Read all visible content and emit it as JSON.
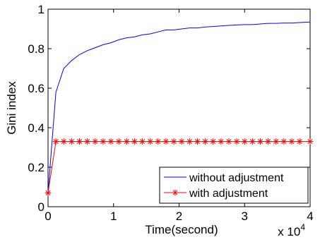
{
  "chart_data": {
    "type": "line",
    "xlabel": "Time(second)",
    "ylabel": "Gini index",
    "x_multiplier": "x 10",
    "x_multiplier_exp": "4",
    "xlim": [
      0,
      40000
    ],
    "ylim": [
      0,
      1
    ],
    "xticks": [
      0,
      10000,
      20000,
      30000,
      40000
    ],
    "xtick_labels": [
      "0",
      "1",
      "2",
      "3",
      "4"
    ],
    "yticks": [
      0,
      0.2,
      0.4,
      0.6,
      0.8,
      1
    ],
    "ytick_labels": [
      "0",
      "0.2",
      "0.4",
      "0.6",
      "0.8",
      "1"
    ],
    "grid": false,
    "legend_position": "bottom-right",
    "series": [
      {
        "name": "without adjustment",
        "color": "#0000ff",
        "marker": "none",
        "x": [
          0,
          1200,
          2400,
          3600,
          4800,
          6000,
          7200,
          8400,
          9600,
          10800,
          12000,
          13200,
          14400,
          15600,
          16800,
          18000,
          19200,
          20400,
          21600,
          22800,
          24000,
          25200,
          26400,
          27600,
          28800,
          30000,
          31200,
          32400,
          33600,
          34800,
          36000,
          37200,
          38400,
          40000
        ],
        "y": [
          0.07,
          0.58,
          0.7,
          0.74,
          0.77,
          0.79,
          0.805,
          0.82,
          0.83,
          0.845,
          0.855,
          0.86,
          0.87,
          0.875,
          0.885,
          0.895,
          0.895,
          0.9,
          0.905,
          0.905,
          0.91,
          0.912,
          0.915,
          0.918,
          0.92,
          0.922,
          0.922,
          0.925,
          0.928,
          0.928,
          0.93,
          0.93,
          0.932,
          0.935
        ]
      },
      {
        "name": "with adjustment",
        "color": "#ff0000",
        "marker": "*",
        "x": [
          0,
          1200,
          2400,
          3600,
          4800,
          6000,
          7200,
          8400,
          9600,
          10800,
          12000,
          13200,
          14400,
          15600,
          16800,
          18000,
          19200,
          20400,
          21600,
          22800,
          24000,
          25200,
          26400,
          27600,
          28800,
          30000,
          31200,
          32400,
          33600,
          34800,
          36000,
          37200,
          38400,
          40000
        ],
        "y": [
          0.07,
          0.33,
          0.33,
          0.33,
          0.33,
          0.33,
          0.33,
          0.33,
          0.33,
          0.33,
          0.33,
          0.33,
          0.33,
          0.33,
          0.33,
          0.33,
          0.33,
          0.33,
          0.33,
          0.33,
          0.33,
          0.33,
          0.33,
          0.33,
          0.33,
          0.33,
          0.33,
          0.33,
          0.33,
          0.33,
          0.33,
          0.33,
          0.33,
          0.33
        ]
      }
    ]
  }
}
